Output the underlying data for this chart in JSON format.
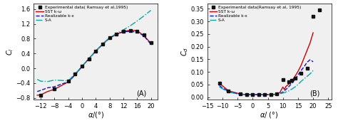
{
  "panel_A": {
    "xlabel": "α/(°)",
    "ylabel": "C_l",
    "label": "(A)",
    "xlim": [
      -14,
      22
    ],
    "ylim": [
      -0.85,
      1.75
    ],
    "xticks": [
      -12,
      -8,
      -4,
      0,
      4,
      8,
      12,
      16,
      20
    ],
    "yticks": [
      -0.8,
      -0.4,
      0.0,
      0.4,
      0.8,
      1.2,
      1.6
    ],
    "exp_x": [
      -12,
      -8,
      -4,
      -2,
      0,
      2,
      4,
      6,
      8,
      10,
      12,
      14,
      16,
      18,
      20
    ],
    "exp_y": [
      -0.73,
      -0.55,
      -0.35,
      -0.15,
      0.05,
      0.25,
      0.46,
      0.65,
      0.82,
      0.92,
      1.0,
      1.02,
      1.0,
      0.91,
      0.7
    ],
    "sst_x": [
      -13,
      -12,
      -10,
      -8,
      -6,
      -4,
      -2,
      0,
      2,
      4,
      6,
      8,
      10,
      12,
      14,
      16,
      18,
      20
    ],
    "sst_y": [
      -0.73,
      -0.72,
      -0.63,
      -0.57,
      -0.47,
      -0.37,
      -0.17,
      0.05,
      0.26,
      0.47,
      0.65,
      0.82,
      0.92,
      1.0,
      1.03,
      1.02,
      0.88,
      0.68
    ],
    "rke_x": [
      -13,
      -12,
      -10,
      -8,
      -6,
      -4,
      -2,
      0,
      2,
      4,
      6,
      8,
      10,
      12,
      14,
      16,
      18,
      20
    ],
    "rke_y": [
      -0.63,
      -0.6,
      -0.53,
      -0.5,
      -0.43,
      -0.37,
      -0.18,
      0.05,
      0.26,
      0.46,
      0.65,
      0.82,
      0.92,
      0.99,
      1.0,
      0.98,
      0.88,
      0.65
    ],
    "sa_x": [
      -13,
      -12,
      -10,
      -8,
      -6,
      -4,
      -2,
      0,
      2,
      4,
      6,
      8,
      10,
      12,
      14,
      16,
      18,
      20
    ],
    "sa_y": [
      -0.3,
      -0.35,
      -0.36,
      -0.32,
      -0.33,
      -0.34,
      -0.15,
      0.05,
      0.26,
      0.47,
      0.66,
      0.83,
      0.94,
      1.04,
      1.15,
      1.28,
      1.42,
      1.57
    ]
  },
  "panel_B": {
    "xlabel": "α/(°)",
    "ylabel": "C_d",
    "label": "(B)",
    "xlim": [
      -15,
      26
    ],
    "ylim": [
      -0.01,
      0.37
    ],
    "xticks": [
      -15,
      -10,
      -5,
      0,
      5,
      10,
      15,
      20,
      25
    ],
    "yticks": [
      0.0,
      0.05,
      0.1,
      0.15,
      0.2,
      0.25,
      0.3,
      0.35
    ],
    "exp_x": [
      -11,
      -8,
      -4,
      -2,
      0,
      2,
      4,
      6,
      8,
      10,
      12,
      13,
      14,
      16,
      18,
      20,
      22
    ],
    "exp_y": [
      0.055,
      0.025,
      0.012,
      0.01,
      0.01,
      0.01,
      0.01,
      0.01,
      0.012,
      0.07,
      0.06,
      0.065,
      0.075,
      0.095,
      0.115,
      0.32,
      0.345
    ],
    "sst_x": [
      -11,
      -8,
      -4,
      -2,
      0,
      2,
      4,
      6,
      8,
      9,
      10,
      10.5,
      11,
      12,
      13,
      14,
      15,
      16,
      17,
      18,
      19,
      20
    ],
    "sst_y": [
      0.055,
      0.025,
      0.012,
      0.01,
      0.01,
      0.01,
      0.01,
      0.01,
      0.012,
      0.018,
      0.04,
      0.03,
      0.042,
      0.052,
      0.065,
      0.082,
      0.102,
      0.125,
      0.155,
      0.185,
      0.215,
      0.255
    ],
    "rke_x": [
      -11,
      -8,
      -4,
      -2,
      0,
      2,
      4,
      6,
      8,
      9,
      10,
      11,
      12,
      13,
      14,
      15,
      16,
      17,
      18,
      19,
      20
    ],
    "rke_y": [
      0.045,
      0.022,
      0.011,
      0.01,
      0.01,
      0.01,
      0.01,
      0.01,
      0.011,
      0.014,
      0.02,
      0.03,
      0.042,
      0.055,
      0.07,
      0.088,
      0.105,
      0.12,
      0.138,
      0.148,
      0.14
    ],
    "sa_x": [
      -11,
      -8,
      -4,
      -2,
      0,
      2,
      4,
      6,
      8,
      10,
      11,
      12,
      13,
      14,
      15,
      16,
      17,
      18,
      19,
      20
    ],
    "sa_y": [
      0.04,
      0.02,
      0.01,
      0.009,
      0.009,
      0.009,
      0.009,
      0.009,
      0.01,
      0.016,
      0.02,
      0.025,
      0.032,
      0.04,
      0.05,
      0.062,
      0.072,
      0.082,
      0.092,
      0.105
    ]
  },
  "legend": {
    "exp_label": "Experimental data( Ramsay et al,1995)",
    "exp_label_B": "Experimental data(Ramsay et al, 1995)",
    "sst_label": "SST k-ω",
    "rke_label": "Realizable k-ε",
    "sa_label": "S-A",
    "exp_color": "#111111",
    "sst_color": "#cc0000",
    "rke_color": "#1111cc",
    "sa_color": "#00aaaa"
  },
  "bg_color": "#f0f0f0",
  "fontsize": 7,
  "tick_fontsize": 6
}
